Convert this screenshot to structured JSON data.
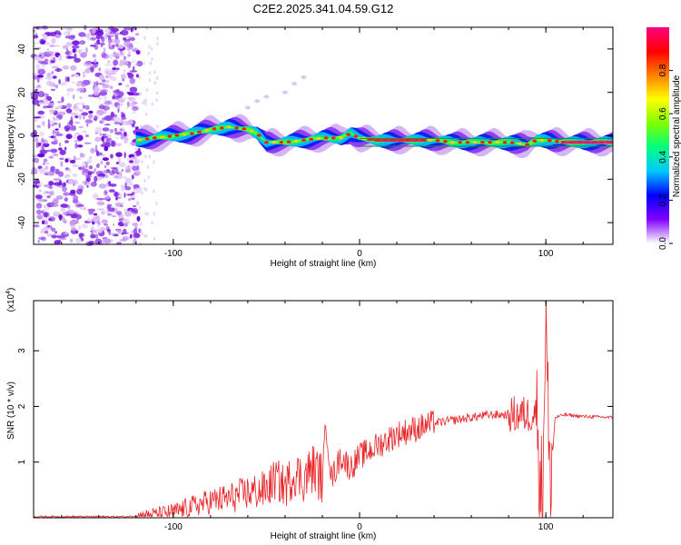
{
  "figure_title": "C2E2.2025.341.04.59.G12",
  "chart_data": [
    {
      "type": "heatmap",
      "xlabel": "Height of straight line (km)",
      "ylabel": "Frequency (Hz)",
      "xlim": [
        -175,
        136
      ],
      "ylim": [
        -50,
        50
      ],
      "xticks": [
        -100,
        0,
        100
      ],
      "yticks": [
        -40,
        -20,
        0,
        20,
        40
      ],
      "colorbar": {
        "label": "Normalized spectral amplitude",
        "range": [
          0,
          1
        ],
        "ticks": [
          "0.0",
          "0.2",
          "0.4",
          "0.6",
          "0.8"
        ],
        "colormap": [
          "#ffffff",
          "#8000ff",
          "#0000ff",
          "#00c8ff",
          "#00ff80",
          "#80ff00",
          "#ffff00",
          "#ff8000",
          "#ff0000",
          "#ff0080"
        ]
      },
      "ridge": {
        "x": [
          -120,
          -110,
          -100,
          -90,
          -80,
          -70,
          -60,
          -55,
          -50,
          -40,
          -30,
          -20,
          -10,
          -5,
          0,
          10,
          20,
          30,
          40,
          50,
          60,
          70,
          80,
          90,
          95,
          100,
          110,
          120,
          136
        ],
        "y": [
          -2,
          -1,
          0,
          1,
          3,
          4,
          3,
          1,
          -3,
          -3,
          -2,
          -1,
          -1,
          1,
          -1,
          -2,
          -2,
          -2,
          -2,
          -3,
          -3,
          -3,
          -3,
          -4,
          -2,
          -2,
          -3,
          -3,
          -3
        ]
      },
      "noise_region_x": [
        -175,
        -118
      ]
    },
    {
      "type": "line",
      "xlabel": "Height of straight line (km)",
      "ylabel": "SNR (10 * v/v)",
      "scale_label": "(x10",
      "scale_exponent": "4",
      "ylabel_unit": ")",
      "xlim": [
        -175,
        136
      ],
      "ylim": [
        0,
        3.9
      ],
      "xticks": [
        -100,
        0,
        100
      ],
      "yticks": [
        1,
        2,
        3
      ],
      "color": "#e8262a",
      "series": [
        {
          "x": [
            -175,
            -150,
            -125,
            -115,
            -100,
            -90,
            -80,
            -70,
            -60,
            -50,
            -45,
            -40,
            -35,
            -30,
            -25,
            -20,
            -18,
            -15,
            -10,
            -5,
            0,
            5,
            10,
            20,
            30,
            40,
            50,
            60,
            70,
            80,
            85,
            90,
            95,
            98,
            100,
            102,
            105,
            110,
            120,
            136
          ],
          "y": [
            0.02,
            0.02,
            0.02,
            0.05,
            0.1,
            0.2,
            0.3,
            0.35,
            0.45,
            0.5,
            0.7,
            0.55,
            0.8,
            0.7,
            0.9,
            0.7,
            1.7,
            0.7,
            1.1,
            0.9,
            1.1,
            1.2,
            1.3,
            1.5,
            1.6,
            1.7,
            1.75,
            1.8,
            1.85,
            1.85,
            1.85,
            1.85,
            1.9,
            0.3,
            3.8,
            0.5,
            1.8,
            1.85,
            1.82,
            1.8
          ]
        }
      ]
    }
  ]
}
